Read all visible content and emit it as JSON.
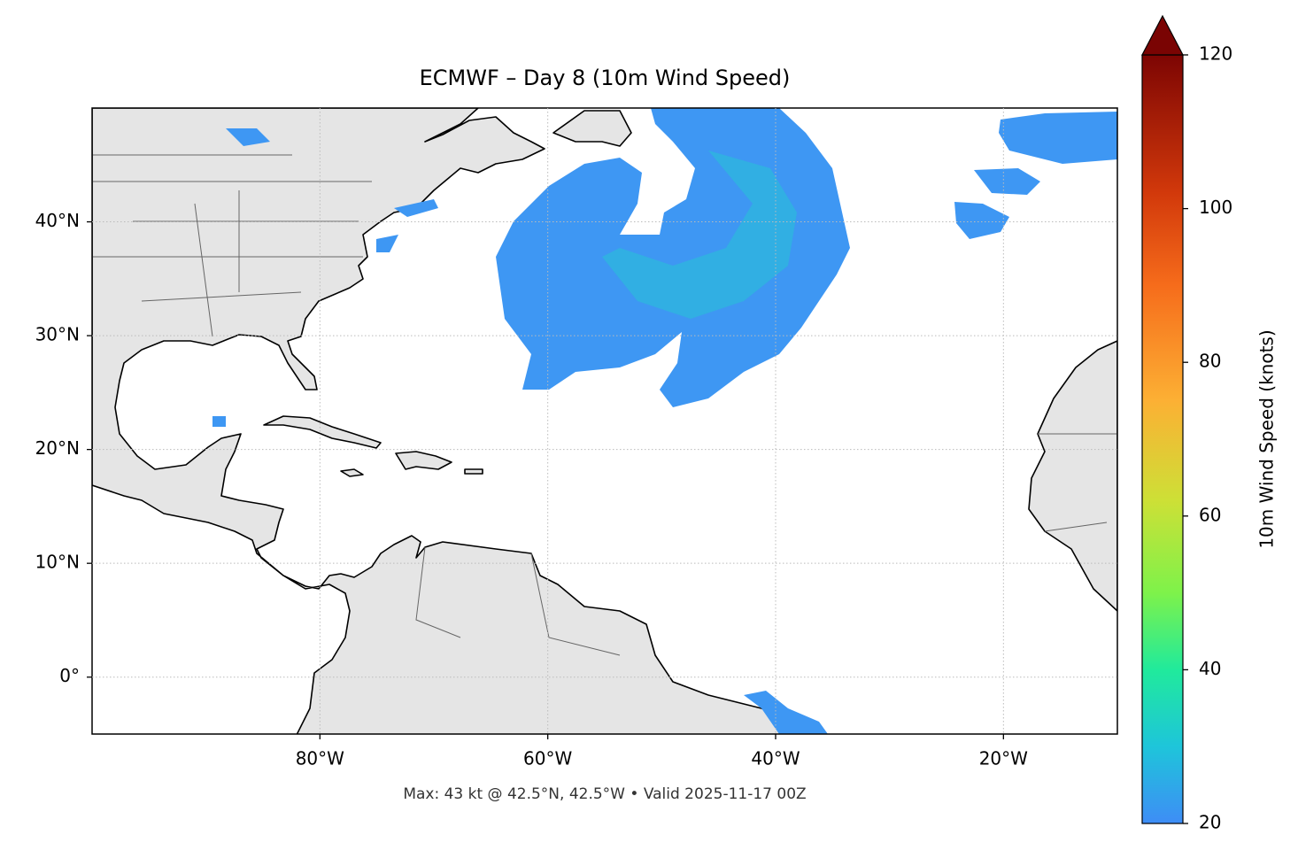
{
  "title": "ECMWF – Day 8 (10m Wind Speed)",
  "footer": "Max: 43 kt @ 42.5°N, 42.5°W • Valid 2025-11-17 00Z",
  "map": {
    "xlim": [
      -100,
      -10
    ],
    "ylim": [
      -5,
      50
    ],
    "grid": true,
    "xticks": [
      {
        "value": -80,
        "label": "80°W"
      },
      {
        "value": -60,
        "label": "60°W"
      },
      {
        "value": -40,
        "label": "40°W"
      },
      {
        "value": -20,
        "label": "20°W"
      }
    ],
    "yticks": [
      {
        "value": 40,
        "label": "40°N"
      },
      {
        "value": 30,
        "label": "30°N"
      },
      {
        "value": 20,
        "label": "20°N"
      },
      {
        "value": 10,
        "label": "10°N"
      },
      {
        "value": 0,
        "label": "0°"
      }
    ]
  },
  "colorbar": {
    "label": "10m Wind Speed (knots)",
    "lim": [
      20,
      120
    ],
    "ticks": [
      20,
      40,
      60,
      80,
      100,
      120
    ],
    "extend": "max"
  }
}
